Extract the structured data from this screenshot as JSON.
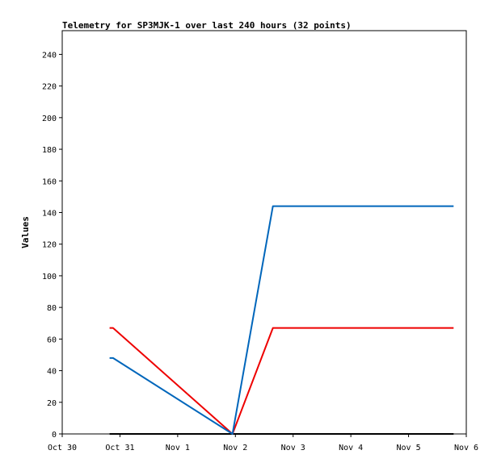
{
  "chart_data": {
    "type": "line",
    "title": "Telemetry for SP3MJK-1 over last 240 hours (32 points)",
    "xlabel": "",
    "ylabel": "Values",
    "x_ticks": [
      "Oct 30",
      "Oct 31",
      "Nov 1",
      "Nov 2",
      "Nov 3",
      "Nov 4",
      "Nov 5",
      "Nov 6"
    ],
    "xlim": [
      0,
      7
    ],
    "y_ticks": [
      0,
      20,
      40,
      60,
      80,
      100,
      120,
      140,
      160,
      180,
      200,
      220,
      240
    ],
    "ylim": [
      0,
      255
    ],
    "grid": false,
    "series": [
      {
        "color": "#000000",
        "x": [
          0.82,
          2.95,
          3.65,
          4.75,
          6.78
        ],
        "values": [
          0,
          0,
          0,
          0,
          0
        ]
      },
      {
        "color": "#ee0000",
        "x": [
          0.82,
          0.88,
          2.95,
          3.65,
          4.75,
          6.78
        ],
        "values": [
          67,
          67,
          0,
          67,
          67,
          67
        ]
      },
      {
        "color": "#0066bb",
        "x": [
          0.82,
          0.88,
          2.95,
          3.65,
          4.75,
          6.78
        ],
        "values": [
          48,
          48,
          0,
          144,
          144,
          144
        ]
      }
    ]
  }
}
